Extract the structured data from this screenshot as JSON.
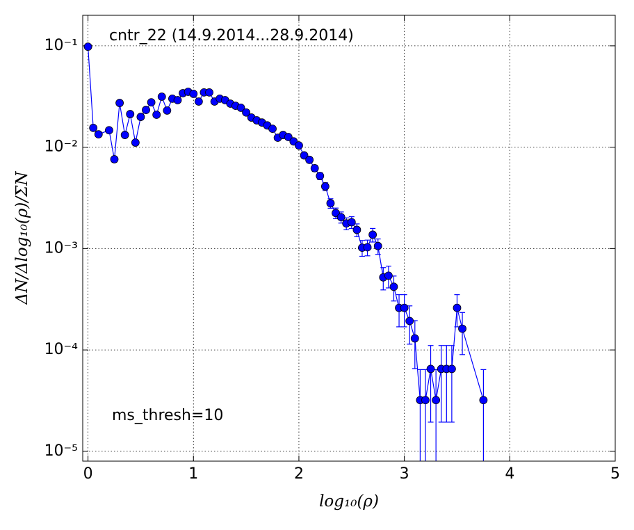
{
  "chart_data": {
    "type": "errorbar",
    "title": "cntr_22 (14.9.2014...28.9.2014)",
    "annotation": "ms_thresh=10",
    "x_label": "log₁₀(ρ)",
    "y_label": "ΔN/Δlog₁₀(ρ)/ΣN",
    "log_y": true,
    "grid": true,
    "color": "#0000ff",
    "xlim": [
      -0.05,
      5
    ],
    "ylim": [
      8e-06,
      0.2
    ],
    "xticks": [
      0,
      1,
      2,
      3,
      4,
      5
    ],
    "yticks": [
      {
        "value": 0.1,
        "label": "10⁻¹"
      },
      {
        "value": 0.01,
        "label": "10⁻²"
      },
      {
        "value": 0.001,
        "label": "10⁻³"
      },
      {
        "value": 0.0001,
        "label": "10⁻⁴"
      },
      {
        "value": 1e-05,
        "label": "10⁻⁵"
      }
    ],
    "x": [
      0,
      0.05,
      0.1,
      0.2,
      0.25,
      0.3,
      0.35,
      0.4,
      0.45,
      0.5,
      0.55,
      0.6,
      0.65,
      0.7,
      0.75,
      0.8,
      0.85,
      0.9,
      0.95,
      1.0,
      1.05,
      1.1,
      1.15,
      1.2,
      1.25,
      1.3,
      1.35,
      1.4,
      1.45,
      1.5,
      1.55,
      1.6,
      1.65,
      1.7,
      1.75,
      1.8,
      1.85,
      1.9,
      1.95,
      2.0,
      2.05,
      2.1,
      2.15,
      2.2,
      2.25,
      2.3,
      2.35,
      2.4,
      2.45,
      2.5,
      2.55,
      2.6,
      2.65,
      2.7,
      2.75,
      2.8,
      2.85,
      2.9,
      2.95,
      3.0,
      3.05,
      3.1,
      3.15,
      3.2,
      3.25,
      3.3,
      3.35,
      3.4,
      3.45,
      3.5,
      3.55,
      3.75
    ],
    "values": [
      0.098,
      0.0155,
      0.0134,
      0.0147,
      0.0076,
      0.0273,
      0.0132,
      0.0212,
      0.0111,
      0.0199,
      0.0233,
      0.0277,
      0.0209,
      0.0315,
      0.023,
      0.0301,
      0.0291,
      0.0341,
      0.0352,
      0.0336,
      0.0282,
      0.0347,
      0.0347,
      0.0282,
      0.0301,
      0.0291,
      0.0269,
      0.0256,
      0.0245,
      0.022,
      0.0196,
      0.0184,
      0.0175,
      0.0164,
      0.0152,
      0.0124,
      0.0132,
      0.0126,
      0.0114,
      0.0104,
      0.0083,
      0.0075,
      0.0062,
      0.0052,
      0.0041,
      0.0028,
      0.00224,
      0.00204,
      0.00177,
      0.00182,
      0.00153,
      0.00102,
      0.00103,
      0.00137,
      0.00106,
      0.00052,
      0.00054,
      0.00042,
      0.00026,
      0.00026,
      0.000193,
      0.00013,
      3.2e-05,
      3.2e-05,
      6.5e-05,
      3.2e-05,
      6.5e-05,
      6.5e-05,
      6.5e-05,
      0.00026,
      0.000162,
      3.2e-05
    ],
    "errors": [
      0.00177,
      0.000705,
      0.000655,
      0.000686,
      0.000493,
      0.000935,
      0.00065,
      0.000824,
      0.000596,
      0.000798,
      0.000864,
      0.000942,
      0.000818,
      0.001,
      0.000858,
      0.00098,
      0.000966,
      0.001045,
      0.00106,
      0.00104,
      0.00095,
      0.00105,
      0.00105,
      0.00095,
      0.00098,
      0.000966,
      0.000928,
      0.000906,
      0.000886,
      0.00084,
      0.000792,
      0.000768,
      0.000749,
      0.000725,
      0.000698,
      0.00063,
      0.00065,
      0.000635,
      0.000604,
      0.000577,
      0.000516,
      0.00049,
      0.000446,
      0.000408,
      0.000362,
      0.0003,
      0.000268,
      0.000256,
      0.000238,
      0.000242,
      0.000221,
      0.000181,
      0.000182,
      0.00021,
      0.000184,
      0.000129,
      0.000131,
      0.000116,
      9.1e-05,
      9.1e-05,
      7.9e-05,
      6.45e-05,
      3.2e-05,
      3.2e-05,
      4.56e-05,
      3.2e-05,
      4.56e-05,
      4.56e-05,
      4.56e-05,
      9.1e-05,
      7.2e-05,
      3.2e-05
    ]
  }
}
